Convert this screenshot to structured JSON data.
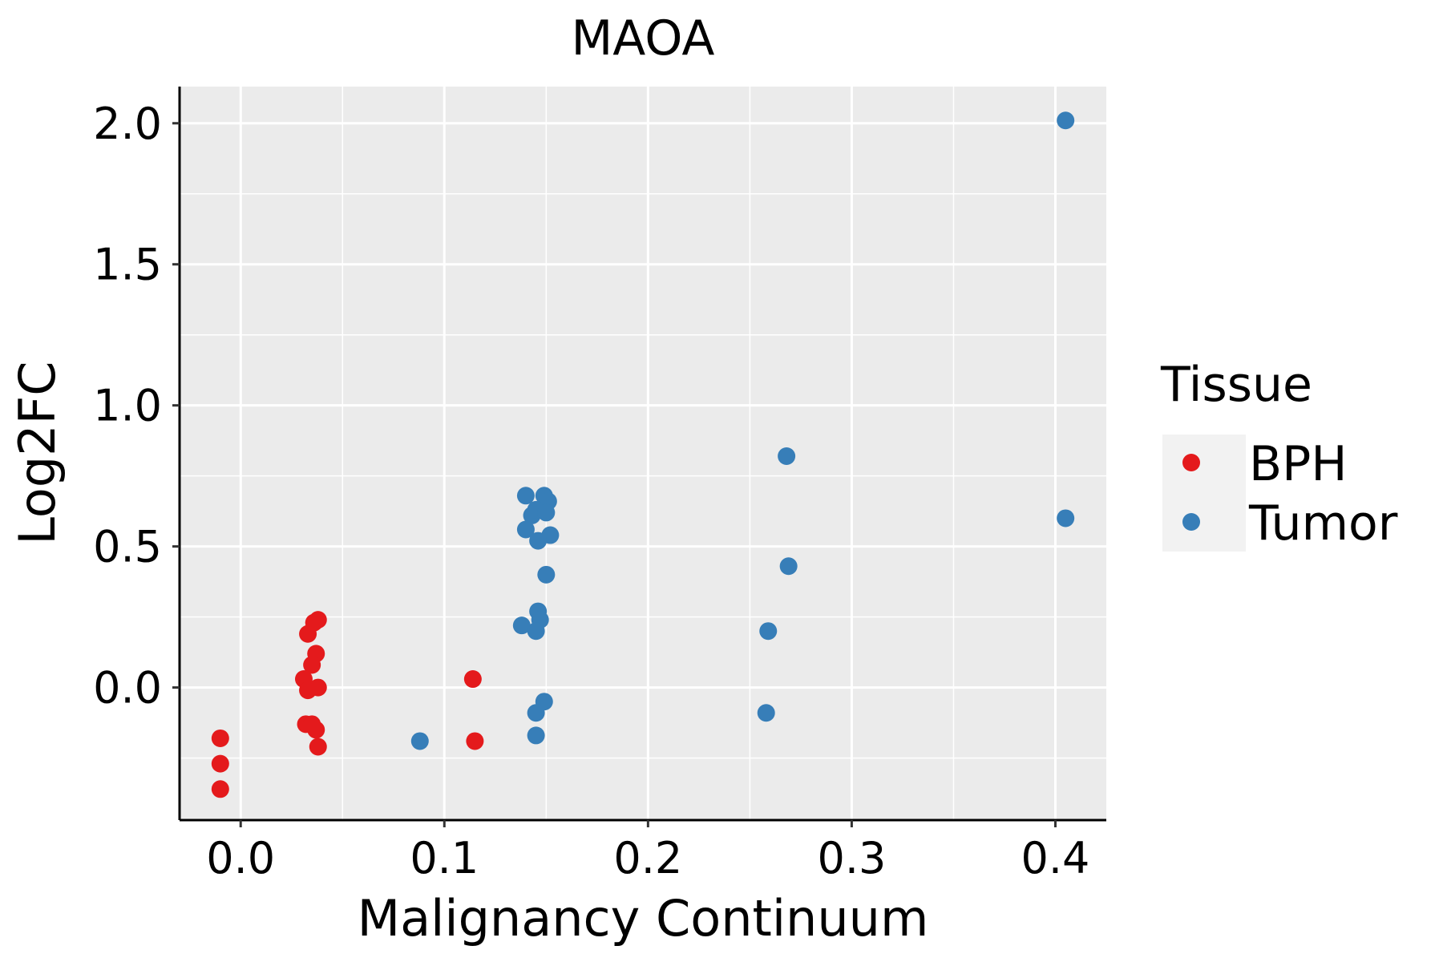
{
  "chart_data": {
    "type": "scatter",
    "title": "MAOA",
    "xlabel": "Malignancy Continuum",
    "ylabel": "Log2FC",
    "xlim": [
      -0.03,
      0.425
    ],
    "ylim": [
      -0.47,
      2.13
    ],
    "x_ticks": [
      0.0,
      0.1,
      0.2,
      0.3,
      0.4
    ],
    "x_tick_labels": [
      "0.0",
      "0.1",
      "0.2",
      "0.3",
      "0.4"
    ],
    "y_ticks": [
      0.0,
      0.5,
      1.0,
      1.5,
      2.0
    ],
    "y_tick_labels": [
      "0.0",
      "0.5",
      "1.0",
      "1.5",
      "2.0"
    ],
    "grid": true,
    "legend": {
      "title": "Tissue",
      "position": "right",
      "entries": [
        {
          "label": "BPH",
          "color": "#E41A1C"
        },
        {
          "label": "Tumor",
          "color": "#377EB8"
        }
      ]
    },
    "series": [
      {
        "name": "BPH",
        "color": "#E41A1C",
        "x": [
          -0.01,
          -0.01,
          -0.01,
          0.033,
          0.036,
          0.038,
          0.037,
          0.035,
          0.031,
          0.033,
          0.038,
          0.032,
          0.035,
          0.037,
          0.038,
          0.114,
          0.115
        ],
        "y": [
          -0.18,
          -0.27,
          -0.36,
          0.19,
          0.23,
          0.24,
          0.12,
          0.08,
          0.03,
          -0.01,
          0.0,
          -0.13,
          -0.13,
          -0.15,
          -0.21,
          0.03,
          -0.19
        ]
      },
      {
        "name": "Tumor",
        "color": "#377EB8",
        "x": [
          0.088,
          0.14,
          0.149,
          0.151,
          0.143,
          0.145,
          0.15,
          0.14,
          0.152,
          0.146,
          0.15,
          0.146,
          0.147,
          0.138,
          0.145,
          0.149,
          0.145,
          0.145,
          0.268,
          0.269,
          0.259,
          0.258,
          0.405,
          0.405
        ],
        "y": [
          -0.19,
          0.68,
          0.68,
          0.66,
          0.61,
          0.63,
          0.62,
          0.56,
          0.54,
          0.52,
          0.4,
          0.27,
          0.24,
          0.22,
          0.2,
          -0.05,
          -0.09,
          -0.17,
          0.82,
          0.43,
          0.2,
          -0.09,
          2.01,
          0.6
        ]
      }
    ]
  }
}
